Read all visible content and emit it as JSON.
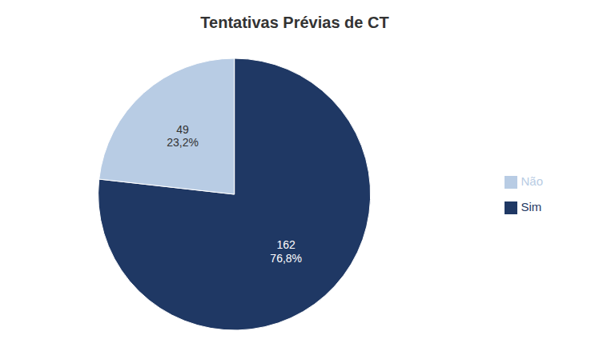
{
  "chart_data": {
    "type": "pie",
    "title": "Tentativas Prévias de CT",
    "categories": [
      "Sim",
      "Não"
    ],
    "values": [
      162,
      49
    ],
    "percentages": [
      {
        "value": 76.8,
        "label": "76,8%"
      },
      {
        "value": 23.2,
        "label": "23,2%"
      }
    ],
    "colors": [
      "#1f3864",
      "#b8cce4"
    ],
    "data_labels": true,
    "legend": "right"
  }
}
